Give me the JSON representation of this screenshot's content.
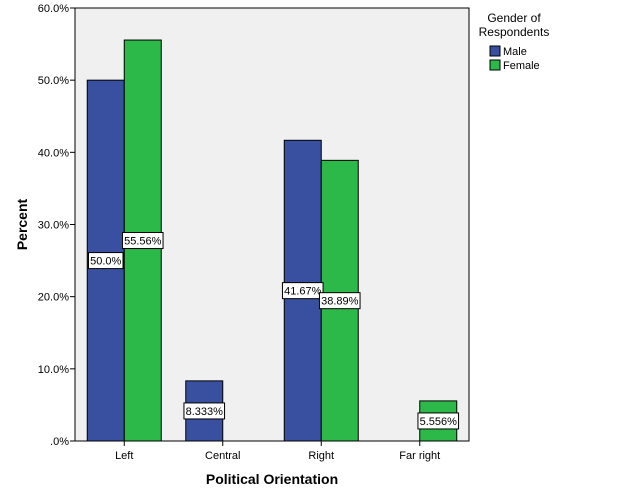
{
  "chart_data": {
    "type": "bar",
    "categories": [
      "Left",
      "Central",
      "Right",
      "Far right"
    ],
    "series": [
      {
        "name": "Male",
        "color": "#3950A0",
        "values": [
          50.0,
          8.333,
          41.67,
          null
        ],
        "labels": [
          "50.0%",
          "8.333%",
          "41.67%",
          ""
        ]
      },
      {
        "name": "Female",
        "color": "#2DB84A",
        "values": [
          55.56,
          null,
          38.89,
          5.556
        ],
        "labels": [
          "55.56%",
          "",
          "38.89%",
          "5.556%"
        ]
      }
    ],
    "xlabel": "Political Orientation",
    "ylabel": "Percent",
    "ylim": [
      0,
      60
    ],
    "yticks": [
      ".0%",
      "10.0%",
      "20.0%",
      "30.0%",
      "40.0%",
      "50.0%",
      "60.0%"
    ],
    "legend_title": "Gender of Respondents",
    "legend_title_lines": [
      "Gender of",
      "Respondents"
    ],
    "legend_placement": "top-right",
    "plot_background": "#F0F0F0",
    "grid": false
  }
}
